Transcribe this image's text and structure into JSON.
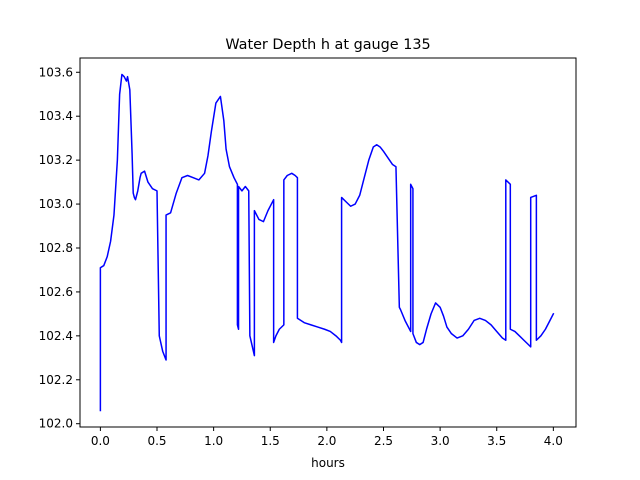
{
  "chart_data": {
    "type": "line",
    "title": "Water Depth h at gauge 135",
    "xlabel": "hours",
    "ylabel": "",
    "xlim": [
      -0.18,
      4.2
    ],
    "ylim": [
      101.985,
      103.665
    ],
    "xticks": [
      0.0,
      0.5,
      1.0,
      1.5,
      2.0,
      2.5,
      3.0,
      3.5,
      4.0
    ],
    "xtick_labels": [
      "0.0",
      "0.5",
      "1.0",
      "1.5",
      "2.0",
      "2.5",
      "3.0",
      "3.5",
      "4.0"
    ],
    "yticks": [
      102.0,
      102.2,
      102.4,
      102.6,
      102.8,
      103.0,
      103.2,
      103.4,
      103.6
    ],
    "ytick_labels": [
      "102.0",
      "102.2",
      "102.4",
      "102.6",
      "102.8",
      "103.0",
      "103.2",
      "103.4",
      "103.6"
    ],
    "grid": false,
    "series": [
      {
        "color": "#0000ff",
        "x": [
          0.0,
          0.0,
          0.03,
          0.06,
          0.09,
          0.12,
          0.15,
          0.17,
          0.19,
          0.21,
          0.23,
          0.24,
          0.25,
          0.26,
          0.28,
          0.29,
          0.3,
          0.31,
          0.33,
          0.35,
          0.36,
          0.39,
          0.42,
          0.46,
          0.5,
          0.52,
          0.52,
          0.55,
          0.58,
          0.58,
          0.62,
          0.67,
          0.72,
          0.77,
          0.82,
          0.87,
          0.92,
          0.95,
          0.98,
          1.02,
          1.06,
          1.09,
          1.11,
          1.14,
          1.18,
          1.21,
          1.21,
          1.22,
          1.22,
          1.25,
          1.28,
          1.31,
          1.32,
          1.32,
          1.36,
          1.36,
          1.4,
          1.44,
          1.48,
          1.53,
          1.53,
          1.55,
          1.58,
          1.62,
          1.62,
          1.65,
          1.69,
          1.72,
          1.74,
          1.74,
          1.8,
          1.86,
          1.92,
          1.98,
          2.03,
          2.08,
          2.12,
          2.13,
          2.13,
          2.17,
          2.21,
          2.25,
          2.29,
          2.33,
          2.37,
          2.41,
          2.44,
          2.47,
          2.5,
          2.54,
          2.58,
          2.61,
          2.64,
          2.65,
          2.65,
          2.69,
          2.74,
          2.74,
          2.76,
          2.76,
          2.79,
          2.82,
          2.85,
          2.88,
          2.92,
          2.96,
          3.0,
          3.03,
          3.06,
          3.1,
          3.15,
          3.2,
          3.25,
          3.3,
          3.35,
          3.4,
          3.45,
          3.5,
          3.55,
          3.58,
          3.58,
          3.62,
          3.62,
          3.66,
          3.7,
          3.74,
          3.78,
          3.8,
          3.8,
          3.85,
          3.85,
          3.89,
          3.93,
          3.97,
          4.0
        ],
        "y": [
          102.06,
          102.71,
          102.72,
          102.76,
          102.83,
          102.95,
          103.2,
          103.5,
          103.59,
          103.58,
          103.56,
          103.58,
          103.55,
          103.52,
          103.23,
          103.05,
          103.03,
          103.02,
          103.06,
          103.12,
          103.14,
          103.15,
          103.1,
          103.07,
          103.06,
          102.4,
          102.4,
          102.33,
          102.29,
          102.95,
          102.96,
          103.05,
          103.12,
          103.13,
          103.12,
          103.11,
          103.14,
          103.22,
          103.33,
          103.46,
          103.49,
          103.38,
          103.25,
          103.17,
          103.12,
          103.09,
          102.45,
          102.43,
          103.08,
          103.06,
          103.08,
          103.06,
          102.4,
          102.4,
          102.31,
          102.97,
          102.93,
          102.92,
          102.97,
          103.02,
          102.37,
          102.4,
          102.43,
          102.45,
          103.11,
          103.13,
          103.14,
          103.13,
          103.12,
          102.48,
          102.46,
          102.45,
          102.44,
          102.43,
          102.42,
          102.4,
          102.38,
          102.37,
          103.03,
          103.01,
          102.99,
          103.0,
          103.04,
          103.12,
          103.2,
          103.26,
          103.27,
          103.26,
          103.24,
          103.21,
          103.18,
          103.17,
          102.53,
          102.52,
          102.52,
          102.47,
          102.42,
          103.09,
          103.07,
          102.41,
          102.37,
          102.36,
          102.37,
          102.43,
          102.5,
          102.55,
          102.53,
          102.49,
          102.44,
          102.41,
          102.39,
          102.4,
          102.43,
          102.47,
          102.48,
          102.47,
          102.45,
          102.42,
          102.39,
          102.38,
          103.11,
          103.09,
          102.43,
          102.42,
          102.4,
          102.38,
          102.36,
          102.35,
          103.03,
          103.04,
          102.38,
          102.4,
          102.43,
          102.47,
          102.5
        ]
      }
    ]
  }
}
